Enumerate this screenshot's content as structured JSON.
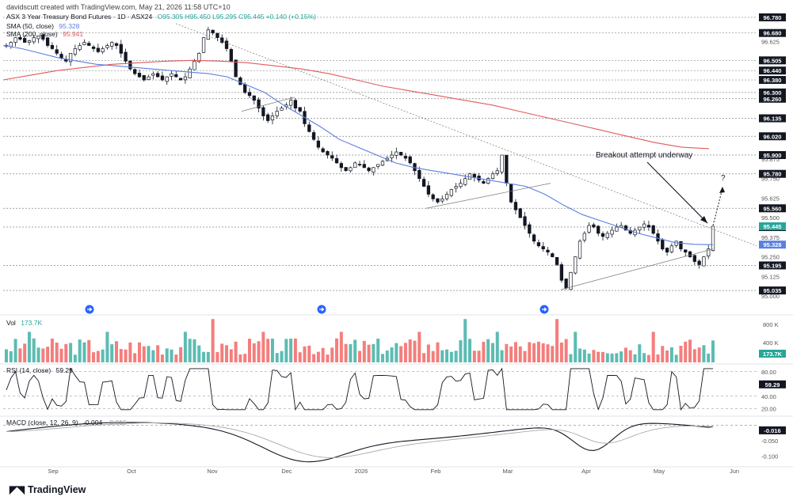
{
  "header": {
    "credit": "davidscutt created with TradingView.com, May 21, 2026 11:58 UTC+10",
    "symbol_line": "ASX 3 Year Treasury Bond Futures · 1D · ASX24",
    "ohlc": "O95.305 H95.450 L95.295 C95.445 +0.140 (+0.15%)"
  },
  "indicators": {
    "sma50": {
      "label": "SMA (50, close)",
      "value": "95.328",
      "color": "#5b7fe0"
    },
    "sma200": {
      "label": "SMA (200, close)",
      "value": "95.941",
      "color": "#e05b5b"
    },
    "vol": {
      "label": "Vol",
      "value": "173.7K",
      "color": "#26a69a"
    },
    "rsi": {
      "label": "RSI (14, close)",
      "value": "59.29",
      "color": "#131722"
    },
    "macd": {
      "label": "MACD (close, 12, 26, 9)",
      "value": "-0.004",
      "signal_value": "-0.016",
      "color": "#131722"
    }
  },
  "colors": {
    "up": "#26a69a",
    "down": "#ef5350",
    "wick": "#131722",
    "candle_up_fill": "#ffffff",
    "sma50": "#5b7fe0",
    "sma200": "#e05b5b",
    "grid": "#888888"
  },
  "annotation": {
    "text": "Breakout attempt underway",
    "question": "?"
  },
  "branding": {
    "logo_text": "TradingView"
  },
  "chart_data": {
    "type": "candlestick",
    "x_ticks": [
      "Sep",
      "Oct",
      "Nov",
      "Dec",
      "2026",
      "Feb",
      "Mar",
      "Apr",
      "May",
      "Jun"
    ],
    "price_level_labels": [
      96.78,
      96.68,
      96.505,
      96.44,
      96.38,
      96.3,
      96.26,
      96.135,
      96.02,
      95.9,
      95.78,
      95.56,
      95.44,
      95.195,
      95.035
    ],
    "price_axis_ticks": [
      "96.625",
      "95.875",
      "95.750",
      "95.625",
      "95.500",
      "95.445",
      "95.375",
      "95.250",
      "95.125",
      "95.000"
    ],
    "current_price_tag": "95.445",
    "sma50_tag": "95.328",
    "price_range": [
      94.98,
      96.82
    ],
    "close_series": [
      96.6,
      96.62,
      96.65,
      96.64,
      96.62,
      96.63,
      96.65,
      96.66,
      96.64,
      96.6,
      96.58,
      96.55,
      96.52,
      96.5,
      96.55,
      96.58,
      96.6,
      96.62,
      96.6,
      96.58,
      96.56,
      96.58,
      96.6,
      96.62,
      96.6,
      96.55,
      96.5,
      96.45,
      96.42,
      96.4,
      96.38,
      96.4,
      96.42,
      96.4,
      96.38,
      96.4,
      96.42,
      96.4,
      96.38,
      96.4,
      96.45,
      96.5,
      96.55,
      96.65,
      96.7,
      96.68,
      96.65,
      96.62,
      96.58,
      96.5,
      96.4,
      96.35,
      96.3,
      96.28,
      96.25,
      96.2,
      96.15,
      96.12,
      96.15,
      96.18,
      96.2,
      96.22,
      96.25,
      96.2,
      96.18,
      96.1,
      96.05,
      96.0,
      95.95,
      95.92,
      95.9,
      95.88,
      95.85,
      95.82,
      95.8,
      95.82,
      95.85,
      95.84,
      95.82,
      95.8,
      95.82,
      95.84,
      95.86,
      95.88,
      95.9,
      95.92,
      95.9,
      95.88,
      95.85,
      95.8,
      95.75,
      95.7,
      95.65,
      95.62,
      95.6,
      95.62,
      95.65,
      95.68,
      95.7,
      95.72,
      95.75,
      95.78,
      95.76,
      95.74,
      95.72,
      95.75,
      95.78,
      95.8,
      95.9,
      95.72,
      95.6,
      95.55,
      95.5,
      95.45,
      95.4,
      95.35,
      95.32,
      95.3,
      95.28,
      95.25,
      95.2,
      95.1,
      95.05,
      95.15,
      95.25,
      95.35,
      95.4,
      95.45,
      95.44,
      95.4,
      95.38,
      95.4,
      95.42,
      95.44,
      95.45,
      95.42,
      95.4,
      95.42,
      95.44,
      95.46,
      95.44,
      95.4,
      95.35,
      95.3,
      95.28,
      95.32,
      95.35,
      95.3,
      95.28,
      95.25,
      95.22,
      95.2,
      95.25,
      95.3,
      95.445
    ],
    "sma50_series": [
      96.6,
      96.58,
      96.55,
      96.52,
      96.5,
      96.48,
      96.47,
      96.46,
      96.45,
      96.44,
      96.43,
      96.42,
      96.4,
      96.35,
      96.3,
      96.22,
      96.15,
      96.08,
      96.0,
      95.95,
      95.9,
      95.85,
      95.82,
      95.8,
      95.78,
      95.76,
      95.74,
      95.72,
      95.7,
      95.65,
      95.58,
      95.52,
      95.48,
      95.44,
      95.4,
      95.37,
      95.34,
      95.33,
      95.328
    ],
    "sma200_series": [
      96.38,
      96.41,
      96.44,
      96.46,
      96.48,
      96.49,
      96.5,
      96.505,
      96.5,
      96.49,
      96.47,
      96.45,
      96.42,
      96.38,
      96.34,
      96.31,
      96.28,
      96.25,
      96.22,
      96.18,
      96.14,
      96.1,
      96.06,
      96.02,
      95.98,
      95.95,
      95.941
    ],
    "volume_range": [
      0,
      900
    ],
    "volume_axis_ticks": [
      "800 K",
      "400 K"
    ],
    "rsi_axis_ticks": [
      "80.00",
      "59.29",
      "40.00",
      "20.00"
    ],
    "rsi_range": [
      10,
      90
    ],
    "macd_axis_ticks": [
      "-0.016",
      "-0.050",
      "-0.100"
    ],
    "macd_range": [
      -0.13,
      0.02
    ]
  }
}
